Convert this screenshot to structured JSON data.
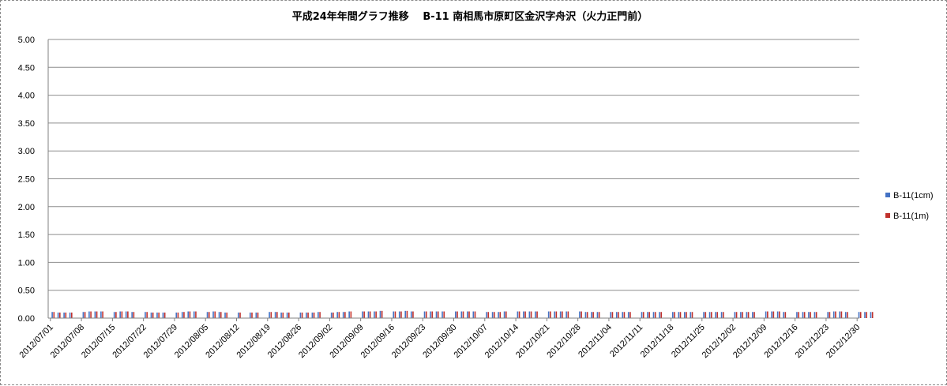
{
  "chart_data": {
    "type": "bar",
    "title": "平成24年年間グラフ推移　 B-11 南相馬市原町区金沢字舟沢（火力正門前）",
    "xlabel": "",
    "ylabel": "",
    "ylim": [
      0,
      5
    ],
    "y_ticks": [
      "5.00",
      "4.50",
      "4.00",
      "3.50",
      "3.00",
      "2.50",
      "2.00",
      "1.50",
      "1.00",
      "0.50",
      "0.00"
    ],
    "grid": true,
    "legend_position": "right",
    "x_tick_labels": [
      "2012/07/01",
      "2012/07/08",
      "2012/07/15",
      "2012/07/22",
      "2012/07/29",
      "2012/08/05",
      "2012/08/12",
      "2012/08/19",
      "2012/08/26",
      "2012/09/02",
      "2012/09/09",
      "2012/09/16",
      "2012/09/23",
      "2012/09/30",
      "2012/10/07",
      "2012/10/14",
      "2012/10/21",
      "2012/10/28",
      "2012/11/04",
      "2012/11/11",
      "2012/11/18",
      "2012/11/25",
      "2012/12/02",
      "2012/12/09",
      "2012/12/16",
      "2012/12/23",
      "2012/12/30"
    ],
    "series_colors": [
      "#4472c4",
      "#c0312d"
    ],
    "series": [
      {
        "name": "B-11(1cm)",
        "values": [
          0.11,
          0.1,
          0.1,
          0.1,
          0.11,
          0.12,
          0.12,
          0.12,
          0.11,
          0.12,
          0.12,
          0.11,
          0.11,
          0.1,
          0.1,
          0.1,
          0.1,
          0.11,
          0.12,
          0.12,
          0.11,
          0.12,
          0.11,
          0.1,
          0.1,
          null,
          0.1,
          0.1,
          0.11,
          0.11,
          0.1,
          0.1,
          0.1,
          0.1,
          0.1,
          0.11,
          0.1,
          0.11,
          0.11,
          0.12,
          0.12,
          0.12,
          0.12,
          0.13,
          0.12,
          0.12,
          0.13,
          0.12,
          0.12,
          0.12,
          0.12,
          0.12,
          0.12,
          0.12,
          0.12,
          0.12,
          0.11,
          0.11,
          0.11,
          0.12,
          0.12,
          0.12,
          0.12,
          0.12,
          0.12,
          0.12,
          0.12,
          0.12,
          0.12,
          0.11,
          0.11,
          0.11,
          0.11,
          0.11,
          0.11,
          0.11,
          0.11,
          0.11,
          0.11,
          0.11,
          0.11,
          0.11,
          0.11,
          0.11,
          0.11,
          0.11,
          0.11,
          0.11,
          0.11,
          0.11,
          0.11,
          0.11,
          0.12,
          0.12,
          0.12,
          0.11,
          0.11,
          0.11,
          0.11,
          0.11,
          0.11,
          0.12,
          0.12,
          0.11,
          0.11,
          0.11,
          0.11
        ]
      },
      {
        "name": "B-11(1m)",
        "values": [
          0.11,
          0.1,
          0.1,
          0.1,
          0.11,
          0.12,
          0.12,
          0.12,
          0.11,
          0.12,
          0.12,
          0.11,
          0.11,
          0.1,
          0.1,
          0.1,
          0.1,
          0.11,
          0.12,
          0.12,
          0.11,
          0.12,
          0.11,
          0.1,
          0.1,
          null,
          0.1,
          0.1,
          0.11,
          0.11,
          0.1,
          0.1,
          0.1,
          0.1,
          0.1,
          0.11,
          0.1,
          0.11,
          0.11,
          0.12,
          0.12,
          0.12,
          0.12,
          0.13,
          0.12,
          0.12,
          0.13,
          0.12,
          0.12,
          0.12,
          0.12,
          0.12,
          0.12,
          0.12,
          0.12,
          0.12,
          0.11,
          0.11,
          0.11,
          0.12,
          0.12,
          0.12,
          0.12,
          0.12,
          0.12,
          0.12,
          0.12,
          0.12,
          0.12,
          0.11,
          0.11,
          0.11,
          0.11,
          0.11,
          0.11,
          0.11,
          0.11,
          0.11,
          0.11,
          0.11,
          0.11,
          0.11,
          0.11,
          0.11,
          0.11,
          0.11,
          0.11,
          0.11,
          0.11,
          0.11,
          0.11,
          0.11,
          0.12,
          0.12,
          0.12,
          0.11,
          0.11,
          0.11,
          0.11,
          0.11,
          0.11,
          0.12,
          0.12,
          0.11,
          0.11,
          0.11,
          0.11
        ]
      }
    ]
  }
}
